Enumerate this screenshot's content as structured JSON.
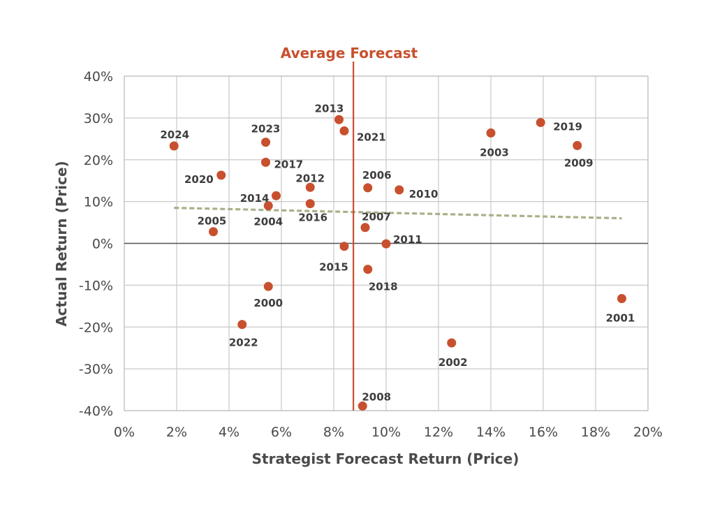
{
  "chart_data": {
    "type": "scatter",
    "xlabel": "Strategist Forecast Return (Price)",
    "ylabel": "Actual Return (Price)",
    "xlim": [
      0,
      20
    ],
    "ylim": [
      -40,
      40
    ],
    "x_ticks": [
      "0%",
      "2%",
      "4%",
      "6%",
      "8%",
      "10%",
      "12%",
      "14%",
      "16%",
      "18%",
      "20%"
    ],
    "y_ticks": [
      "40%",
      "30%",
      "20%",
      "10%",
      "0%",
      "-10%",
      "-20%",
      "-30%",
      "-40%"
    ],
    "grid": true,
    "point_color": "#c8502e",
    "average_forecast": {
      "label": "Average Forecast",
      "x": 8.75,
      "color": "#c8502e"
    },
    "trendline": {
      "x": [
        1.9,
        19.0
      ],
      "y": [
        8.5,
        6.0
      ],
      "color": "#a8b088",
      "style": "dashed"
    },
    "points": [
      {
        "label": "2000",
        "x": 5.5,
        "y": -10.3
      },
      {
        "label": "2001",
        "x": 19.0,
        "y": -13.2
      },
      {
        "label": "2002",
        "x": 12.5,
        "y": -23.8
      },
      {
        "label": "2003",
        "x": 14.0,
        "y": 26.4
      },
      {
        "label": "2004",
        "x": 5.5,
        "y": 9.0
      },
      {
        "label": "2005",
        "x": 3.4,
        "y": 2.8
      },
      {
        "label": "2006",
        "x": 9.3,
        "y": 13.3
      },
      {
        "label": "2007",
        "x": 9.2,
        "y": 3.8
      },
      {
        "label": "2008",
        "x": 9.1,
        "y": -38.9
      },
      {
        "label": "2009",
        "x": 17.3,
        "y": 23.4
      },
      {
        "label": "2010",
        "x": 10.5,
        "y": 12.8
      },
      {
        "label": "2011",
        "x": 10.0,
        "y": -0.1
      },
      {
        "label": "2012",
        "x": 7.1,
        "y": 13.4
      },
      {
        "label": "2013",
        "x": 8.2,
        "y": 29.6
      },
      {
        "label": "2014",
        "x": 5.8,
        "y": 11.4
      },
      {
        "label": "2015",
        "x": 8.4,
        "y": -0.7
      },
      {
        "label": "2016",
        "x": 7.1,
        "y": 9.5
      },
      {
        "label": "2017",
        "x": 5.4,
        "y": 19.4
      },
      {
        "label": "2018",
        "x": 9.3,
        "y": -6.2
      },
      {
        "label": "2019",
        "x": 15.9,
        "y": 28.9
      },
      {
        "label": "2020",
        "x": 3.7,
        "y": 16.3
      },
      {
        "label": "2021",
        "x": 8.4,
        "y": 26.9
      },
      {
        "label": "2022",
        "x": 4.5,
        "y": -19.4
      },
      {
        "label": "2023",
        "x": 5.4,
        "y": 24.2
      },
      {
        "label": "2024",
        "x": 1.9,
        "y": 23.3
      }
    ]
  }
}
